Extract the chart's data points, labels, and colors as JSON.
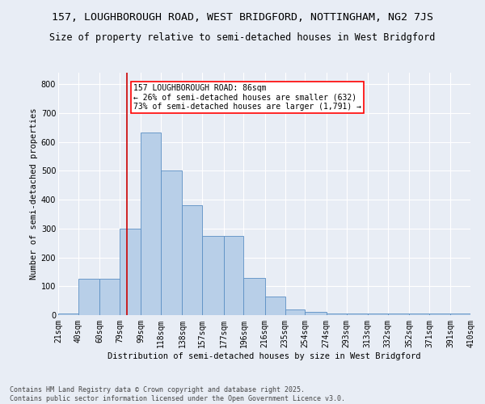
{
  "title": "157, LOUGHBOROUGH ROAD, WEST BRIDGFORD, NOTTINGHAM, NG2 7JS",
  "subtitle": "Size of property relative to semi-detached houses in West Bridgford",
  "xlabel": "Distribution of semi-detached houses by size in West Bridgford",
  "ylabel": "Number of semi-detached properties",
  "footer_line1": "Contains HM Land Registry data © Crown copyright and database right 2025.",
  "footer_line2": "Contains public sector information licensed under the Open Government Licence v3.0.",
  "bin_edges": [
    21,
    40,
    60,
    79,
    99,
    118,
    138,
    157,
    177,
    196,
    216,
    235,
    254,
    274,
    293,
    313,
    332,
    352,
    371,
    391,
    410
  ],
  "bar_heights": [
    5,
    125,
    125,
    300,
    632,
    500,
    380,
    275,
    275,
    130,
    65,
    20,
    10,
    5,
    5,
    5,
    5,
    5,
    5,
    5
  ],
  "bar_color": "#b8cfe8",
  "bar_edge_color": "#5b8fc4",
  "subject_value": 86,
  "subject_label": "157 LOUGHBOROUGH ROAD: 86sqm",
  "pct_smaller": 26,
  "pct_smaller_count": 632,
  "pct_larger": 73,
  "pct_larger_count": 1791,
  "annotation_arrow_left": "←",
  "annotation_arrow_right": "→",
  "vline_color": "#cc0000",
  "background_color": "#e8edf5",
  "plot_bg_color": "#e8edf5",
  "ylim": [
    0,
    840
  ],
  "yticks": [
    0,
    100,
    200,
    300,
    400,
    500,
    600,
    700,
    800
  ],
  "title_fontsize": 9.5,
  "subtitle_fontsize": 8.5,
  "axis_label_fontsize": 7.5,
  "tick_fontsize": 7,
  "annotation_fontsize": 7,
  "footer_fontsize": 6
}
